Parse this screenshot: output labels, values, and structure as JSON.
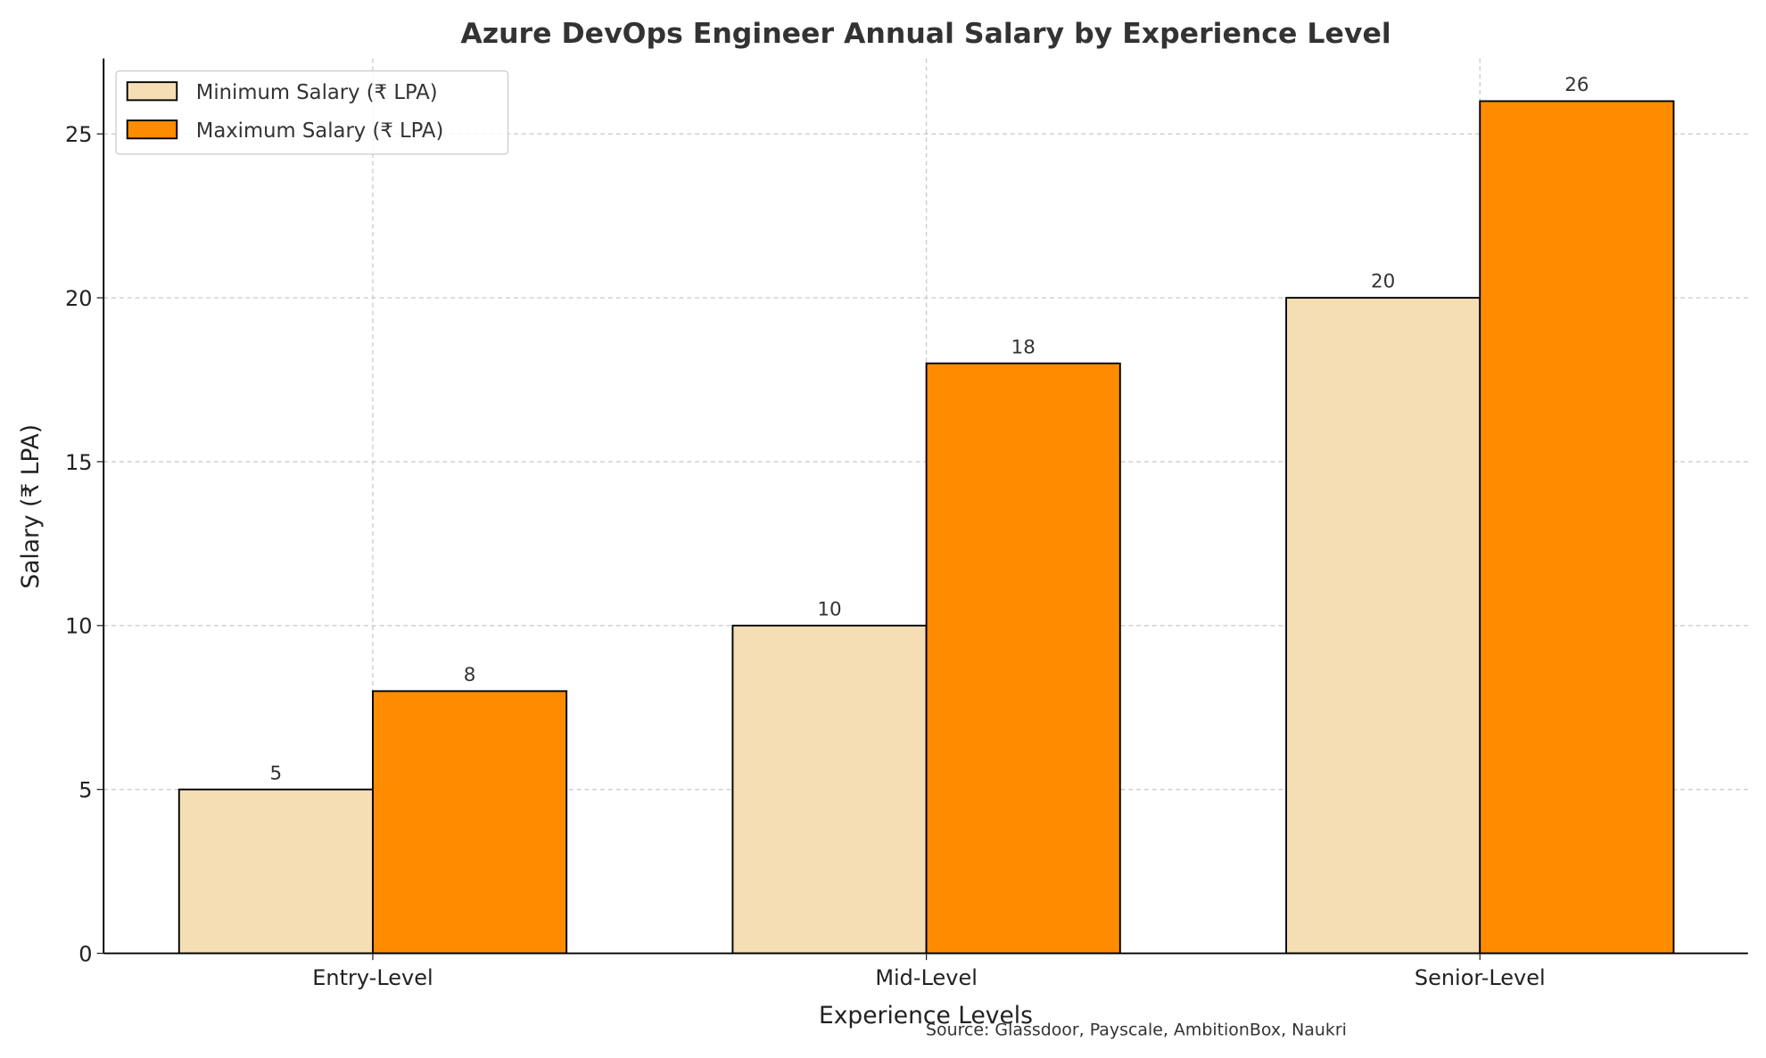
{
  "chart_data": {
    "type": "bar",
    "title": "Azure DevOps Engineer Annual Salary by Experience Level",
    "xlabel": "Experience Levels",
    "ylabel": "Salary (₹ LPA)",
    "categories": [
      "Entry-Level",
      "Mid-Level",
      "Senior-Level"
    ],
    "series": [
      {
        "name": "Minimum Salary (₹ LPA)",
        "values": [
          5,
          10,
          20
        ],
        "color": "#F5DEB3"
      },
      {
        "name": "Maximum Salary (₹ LPA)",
        "values": [
          8,
          18,
          26
        ],
        "color": "#FF8C00"
      }
    ],
    "ylim": [
      0,
      27.3
    ],
    "yticks": [
      0,
      5,
      10,
      15,
      20,
      25
    ],
    "grid": true,
    "legend": "top-left",
    "annotation": "Source: Glassdoor, Payscale, AmbitionBox, Naukri"
  }
}
